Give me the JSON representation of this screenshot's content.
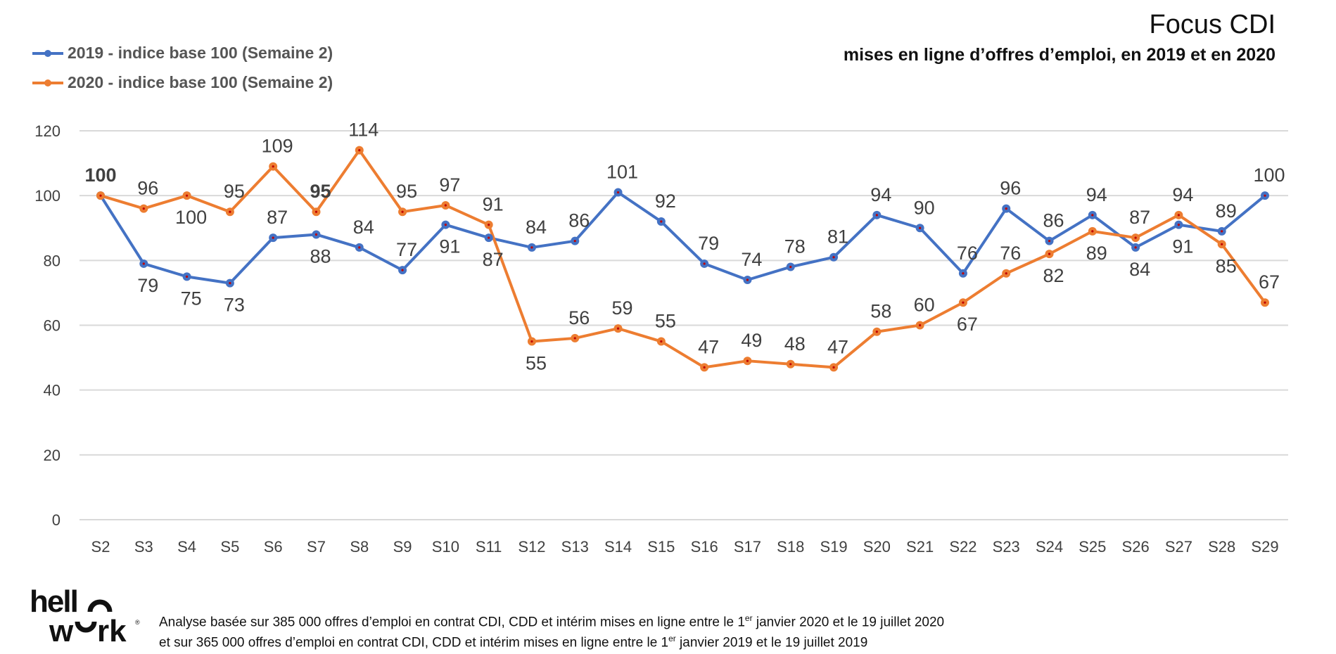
{
  "header": {
    "title": "Focus CDI",
    "subtitle": "mises en ligne d’offres d’emploi, en 2019 et en 2020"
  },
  "footer": {
    "logo_text": "hellowork",
    "line1_a": "Analyse basée sur 385 000 offres d’emploi en contrat CDI, CDD et intérim mises en ligne entre le 1",
    "line1_sup": "er",
    "line1_b": " janvier 2020 et le 19 juillet 2020",
    "line2_a": "et sur 365 000 offres d’emploi en contrat CDI, CDD et intérim mises en ligne entre le 1",
    "line2_sup": "er",
    "line2_b": " janvier 2019 et le 19 juillet 2019"
  },
  "chart_data": {
    "type": "line",
    "title": "Focus CDI",
    "subtitle": "mises en ligne d’offres d’emploi, en 2019 et en 2020",
    "xlabel": "",
    "ylabel": "",
    "ylim": [
      0,
      120
    ],
    "yticks": [
      0,
      20,
      40,
      60,
      80,
      100,
      120
    ],
    "grid": true,
    "legend_position": "top-left",
    "categories": [
      "S2",
      "S3",
      "S4",
      "S5",
      "S6",
      "S7",
      "S8",
      "S9",
      "S10",
      "S11",
      "S12",
      "S13",
      "S14",
      "S15",
      "S16",
      "S17",
      "S18",
      "S19",
      "S20",
      "S21",
      "S22",
      "S23",
      "S24",
      "S25",
      "S26",
      "S27",
      "S28",
      "S29"
    ],
    "series": [
      {
        "name": "2019 - indice base 100 (Semaine 2)",
        "color": "#4472C4",
        "values": [
          100,
          79,
          75,
          73,
          87,
          88,
          84,
          77,
          91,
          87,
          84,
          86,
          101,
          92,
          79,
          74,
          78,
          81,
          94,
          90,
          76,
          96,
          86,
          94,
          84,
          91,
          89,
          100
        ]
      },
      {
        "name": "2020 - indice base 100 (Semaine 2)",
        "color": "#ED7D31",
        "values": [
          100,
          96,
          100,
          95,
          109,
          95,
          114,
          95,
          97,
          91,
          55,
          56,
          59,
          55,
          47,
          49,
          48,
          47,
          58,
          60,
          67,
          76,
          82,
          89,
          87,
          94,
          85,
          67
        ]
      }
    ]
  }
}
